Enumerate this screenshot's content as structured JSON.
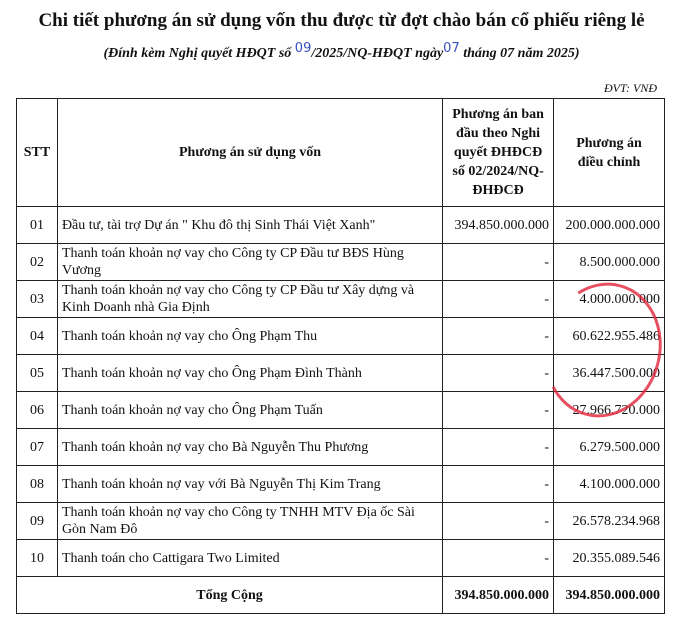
{
  "title": "Chi tiết phương án sử dụng vốn thu được từ đợt chào bán cổ phiếu riêng lẻ",
  "subtitle": {
    "prefix": "(Đính kèm Nghị quyết HĐQT số ",
    "number_handwritten": "09",
    "middle": "/2025/NQ-HĐQT ngày",
    "day_handwritten": "07",
    "suffix": " tháng 07 năm 2025)"
  },
  "unit": "ĐVT: VNĐ",
  "table": {
    "headers": [
      "STT",
      "Phương án sử dụng vốn",
      "Phương án ban đầu theo Nghi quyết ĐHĐCĐ số 02/2024/NQ-ĐHĐCĐ",
      "Phương án điều chỉnh"
    ],
    "rows": [
      {
        "stt": "01",
        "desc": "Đầu tư, tài trợ Dự án \" Khu đô thị Sinh Thái Việt Xanh\"",
        "original": "394.850.000.000",
        "adjusted": "200.000.000.000"
      },
      {
        "stt": "02",
        "desc": "Thanh toán khoản nợ vay cho Công ty CP Đầu tư BĐS Hùng Vương",
        "original": "-",
        "adjusted": "8.500.000.000"
      },
      {
        "stt": "03",
        "desc": "Thanh toán khoản nợ vay cho Công ty CP Đầu tư Xây dựng và Kinh Doanh nhà Gia Định",
        "original": "-",
        "adjusted": "4.000.000.000"
      },
      {
        "stt": "04",
        "desc": "Thanh toán khoản nợ vay cho Ông Phạm Thu",
        "original": "-",
        "adjusted": "60.622.955.486"
      },
      {
        "stt": "05",
        "desc": "Thanh toán khoản nợ vay cho Ông Phạm Đình Thành",
        "original": "-",
        "adjusted": "36.447.500.000"
      },
      {
        "stt": "06",
        "desc": "Thanh toán khoản nợ vay cho Ông Phạm Tuấn",
        "original": "-",
        "adjusted": "27.966.720.000"
      },
      {
        "stt": "07",
        "desc": "Thanh toán khoản nợ vay cho Bà Nguyễn Thu Phương",
        "original": "-",
        "adjusted": "6.279.500.000"
      },
      {
        "stt": "08",
        "desc": "Thanh toán khoản nợ vay với Bà Nguyễn Thị Kim Trang",
        "original": "-",
        "adjusted": "4.100.000.000"
      },
      {
        "stt": "09",
        "desc": "Thanh toán khoản nợ vay cho Công ty TNHH MTV Địa ốc Sài Gòn Nam Đô",
        "original": "-",
        "adjusted": "26.578.234.968"
      },
      {
        "stt": "10",
        "desc": "Thanh toán cho Cattigara Two Limited",
        "original": "-",
        "adjusted": "20.355.089.546"
      }
    ],
    "total": {
      "label": "Tổng Cộng",
      "original": "394.850.000.000",
      "adjusted": "394.850.000.000"
    }
  },
  "colors": {
    "stamp": "#e0253a",
    "handwriting": "#3a4fbf"
  }
}
